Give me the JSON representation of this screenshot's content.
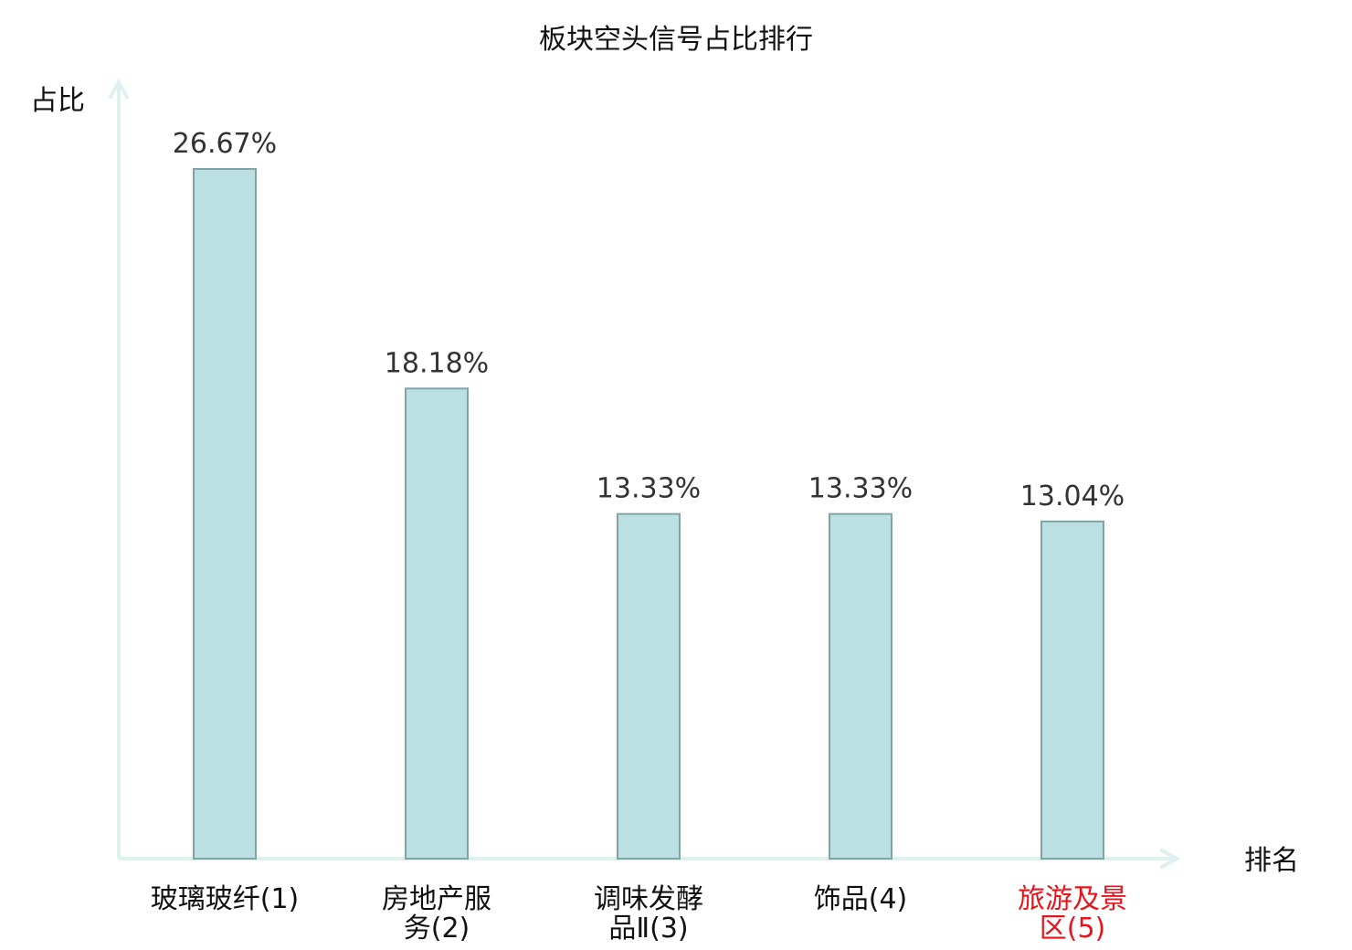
{
  "chart_data": {
    "type": "bar",
    "title": "板块空头信号占比排行",
    "xlabel": "排名",
    "ylabel": "占比",
    "ylim": [
      0,
      30
    ],
    "grid": false,
    "categories": [
      [
        "玻璃玻纤(1)"
      ],
      [
        "房地产服",
        "务(2)"
      ],
      [
        "调味发酵",
        "品Ⅱ(3)"
      ],
      [
        "饰品(4)"
      ],
      [
        "旅游及景",
        "区(5)"
      ]
    ],
    "values": [
      26.67,
      18.18,
      13.33,
      13.33,
      13.04
    ],
    "value_labels": [
      "26.67%",
      "18.18%",
      "13.33%",
      "13.33%",
      "13.04%"
    ],
    "category_colors": [
      "#111111",
      "#111111",
      "#111111",
      "#111111",
      "#e8141c"
    ],
    "bar_fill": "#bce0e2",
    "bar_stroke": "#7fa3a6",
    "axis_color": "#dff1ef"
  }
}
